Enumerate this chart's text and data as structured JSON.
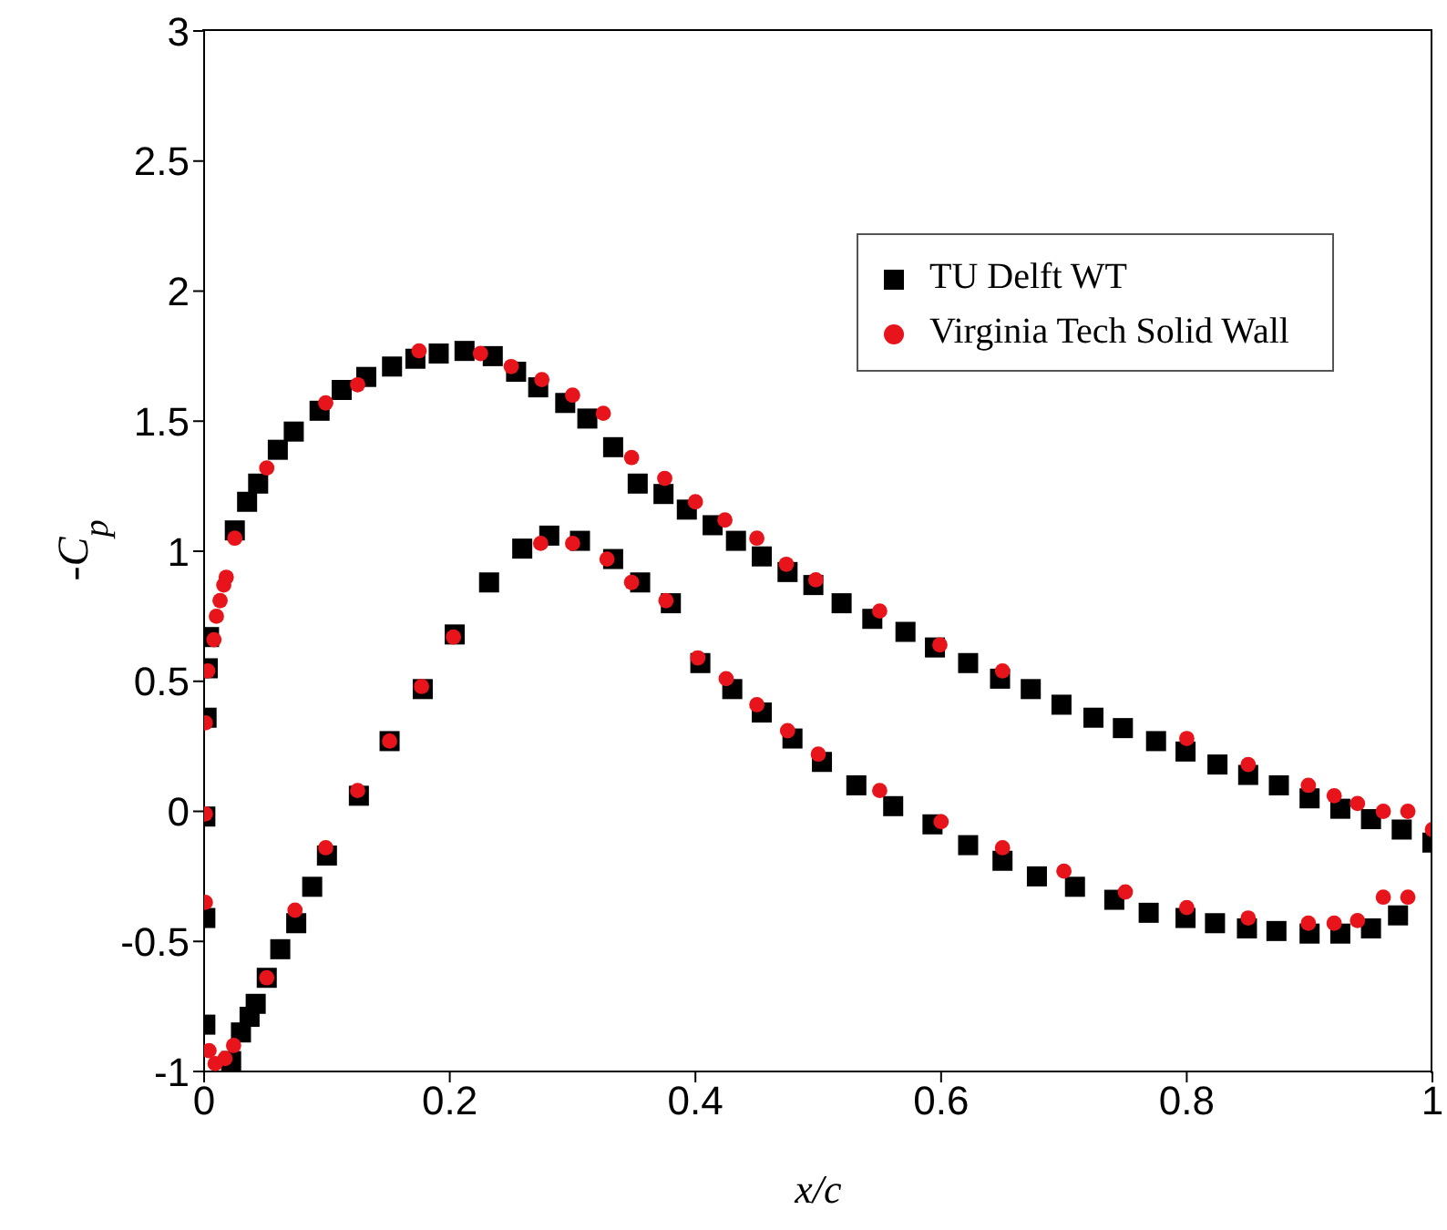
{
  "chart_data": {
    "type": "scatter",
    "xlabel": "x/c",
    "ylabel": "-C$_{p}$",
    "xlim": [
      0,
      1
    ],
    "ylim": [
      -1,
      3
    ],
    "xticks": [
      0,
      0.2,
      0.4,
      0.6,
      0.8,
      1
    ],
    "yticks": [
      -1,
      -0.5,
      0,
      0.5,
      1,
      1.5,
      2,
      2.5,
      3
    ],
    "grid": false,
    "legend": "top right",
    "series": [
      {
        "name": "TU Delft WT",
        "color": "#000000",
        "marker": "square",
        "x": [
          0.002,
          0.003,
          0.004,
          0.025,
          0.035,
          0.044,
          0.06,
          0.073,
          0.094,
          0.112,
          0.132,
          0.153,
          0.172,
          0.191,
          0.212,
          0.235,
          0.254,
          0.272,
          0.294,
          0.312,
          0.333,
          0.353,
          0.374,
          0.393,
          0.414,
          0.433,
          0.454,
          0.475,
          0.496,
          0.519,
          0.544,
          0.571,
          0.595,
          0.622,
          0.648,
          0.673,
          0.698,
          0.724,
          0.748,
          0.775,
          0.799,
          0.825,
          0.85,
          0.875,
          0.9,
          0.925,
          0.95,
          0.975,
          1.0,
          0.001,
          0.001,
          0.001,
          0.022,
          0.03,
          0.037,
          0.042,
          0.051,
          0.062,
          0.075,
          0.088,
          0.1,
          0.126,
          0.151,
          0.178,
          0.204,
          0.232,
          0.259,
          0.281,
          0.306,
          0.333,
          0.355,
          0.38,
          0.404,
          0.43,
          0.454,
          0.479,
          0.503,
          0.531,
          0.561,
          0.593,
          0.622,
          0.65,
          0.678,
          0.709,
          0.741,
          0.769,
          0.799,
          0.823,
          0.849,
          0.873,
          0.9,
          0.925,
          0.95,
          0.972
        ],
        "values": [
          0.36,
          0.55,
          0.67,
          1.08,
          1.19,
          1.26,
          1.39,
          1.46,
          1.54,
          1.62,
          1.67,
          1.71,
          1.74,
          1.76,
          1.77,
          1.75,
          1.69,
          1.63,
          1.57,
          1.51,
          1.4,
          1.26,
          1.22,
          1.16,
          1.1,
          1.04,
          0.98,
          0.92,
          0.87,
          0.8,
          0.74,
          0.69,
          0.63,
          0.57,
          0.51,
          0.47,
          0.41,
          0.36,
          0.32,
          0.27,
          0.23,
          0.18,
          0.14,
          0.1,
          0.05,
          0.01,
          -0.03,
          -0.07,
          -0.12,
          -0.02,
          -0.41,
          -0.82,
          -0.96,
          -0.85,
          -0.79,
          -0.74,
          -0.64,
          -0.53,
          -0.43,
          -0.29,
          -0.17,
          0.06,
          0.27,
          0.47,
          0.68,
          0.88,
          1.01,
          1.06,
          1.04,
          0.97,
          0.88,
          0.8,
          0.57,
          0.47,
          0.38,
          0.28,
          0.19,
          0.1,
          0.02,
          -0.05,
          -0.13,
          -0.19,
          -0.25,
          -0.29,
          -0.34,
          -0.39,
          -0.41,
          -0.43,
          -0.45,
          -0.46,
          -0.47,
          -0.47,
          -0.45,
          -0.4
        ]
      },
      {
        "name": "Virginia Tech Solid Wall",
        "color": "#e8141b",
        "marker": "circle",
        "x": [
          0.001,
          0.003,
          0.008,
          0.01,
          0.013,
          0.016,
          0.018,
          0.025,
          0.051,
          0.099,
          0.125,
          0.175,
          0.225,
          0.25,
          0.275,
          0.3,
          0.325,
          0.348,
          0.375,
          0.4,
          0.424,
          0.45,
          0.474,
          0.498,
          0.55,
          0.599,
          0.65,
          0.8,
          0.85,
          0.899,
          0.92,
          0.939,
          0.96,
          0.98,
          1.0,
          0.001,
          0.001,
          0.004,
          0.009,
          0.017,
          0.024,
          0.051,
          0.074,
          0.099,
          0.125,
          0.151,
          0.177,
          0.203,
          0.274,
          0.3,
          0.328,
          0.348,
          0.376,
          0.402,
          0.425,
          0.45,
          0.475,
          0.5,
          0.55,
          0.6,
          0.65,
          0.7,
          0.75,
          0.8,
          0.85,
          0.899,
          0.92,
          0.939,
          0.96,
          0.98
        ],
        "values": [
          0.34,
          0.54,
          0.66,
          0.75,
          0.81,
          0.87,
          0.9,
          1.05,
          1.32,
          1.57,
          1.64,
          1.77,
          1.76,
          1.71,
          1.66,
          1.6,
          1.53,
          1.36,
          1.28,
          1.19,
          1.12,
          1.05,
          0.95,
          0.89,
          0.77,
          0.64,
          0.54,
          0.28,
          0.18,
          0.1,
          0.06,
          0.03,
          0.0,
          0.0,
          -0.07,
          -0.01,
          -0.35,
          -0.92,
          -0.97,
          -0.95,
          -0.9,
          -0.64,
          -0.38,
          -0.14,
          0.08,
          0.27,
          0.48,
          0.67,
          1.03,
          1.03,
          0.97,
          0.88,
          0.81,
          0.59,
          0.51,
          0.41,
          0.31,
          0.22,
          0.08,
          -0.04,
          -0.14,
          -0.23,
          -0.31,
          -0.37,
          -0.41,
          -0.43,
          -0.43,
          -0.42,
          -0.33,
          -0.33
        ]
      }
    ]
  }
}
